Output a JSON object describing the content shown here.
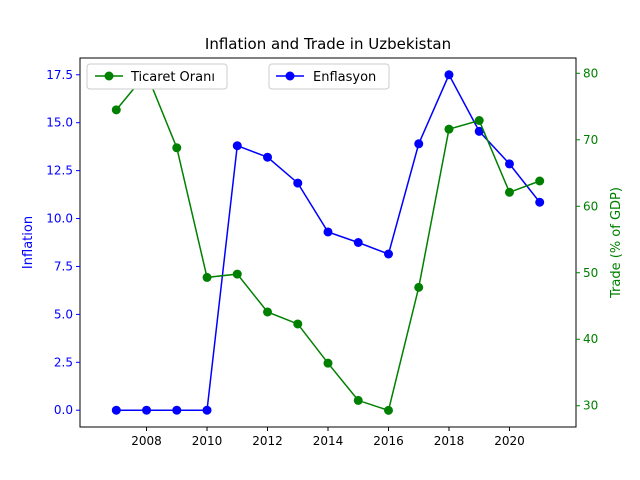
{
  "chart_data": {
    "type": "line",
    "title": "Inflation and Trade in Uzbekistan",
    "x": [
      2007,
      2008,
      2009,
      2010,
      2011,
      2012,
      2013,
      2014,
      2015,
      2016,
      2017,
      2018,
      2019,
      2020,
      2021
    ],
    "x_ticks": [
      "2008",
      "2010",
      "2012",
      "2014",
      "2016",
      "2018",
      "2020"
    ],
    "xlim": [
      2005.8,
      2022.2
    ],
    "left_axis": {
      "label": "Inflation",
      "color": "#0000ff",
      "ylim": [
        -0.875,
        18.375
      ],
      "ticks": [
        "0.0",
        "2.5",
        "5.0",
        "7.5",
        "10.0",
        "12.5",
        "15.0",
        "17.5"
      ]
    },
    "right_axis": {
      "label": "Trade (% of GDP)",
      "color": "#008000",
      "ylim": [
        26.8,
        82.3
      ],
      "ticks": [
        "30",
        "40",
        "50",
        "60",
        "70",
        "80"
      ]
    },
    "series": [
      {
        "name": "Enflasyon",
        "axis": "left",
        "color": "#0000ff",
        "values": [
          0.0,
          0.0,
          0.0,
          0.0,
          13.8,
          13.2,
          11.85,
          9.3,
          8.75,
          8.15,
          13.9,
          17.5,
          14.55,
          12.85,
          10.85
        ]
      },
      {
        "name": "Ticaret Oranı",
        "axis": "right",
        "color": "#008000",
        "values": [
          74.5,
          80.0,
          68.8,
          49.3,
          49.8,
          44.1,
          42.3,
          36.4,
          30.8,
          29.3,
          47.8,
          71.6,
          72.9,
          62.1,
          63.8
        ]
      }
    ],
    "legend": [
      {
        "name": "Ticaret Oranı",
        "placement": "upper-left",
        "color": "#008000"
      },
      {
        "name": "Enflasyon",
        "placement": "upper-center",
        "color": "#0000ff"
      }
    ],
    "grid": false
  }
}
